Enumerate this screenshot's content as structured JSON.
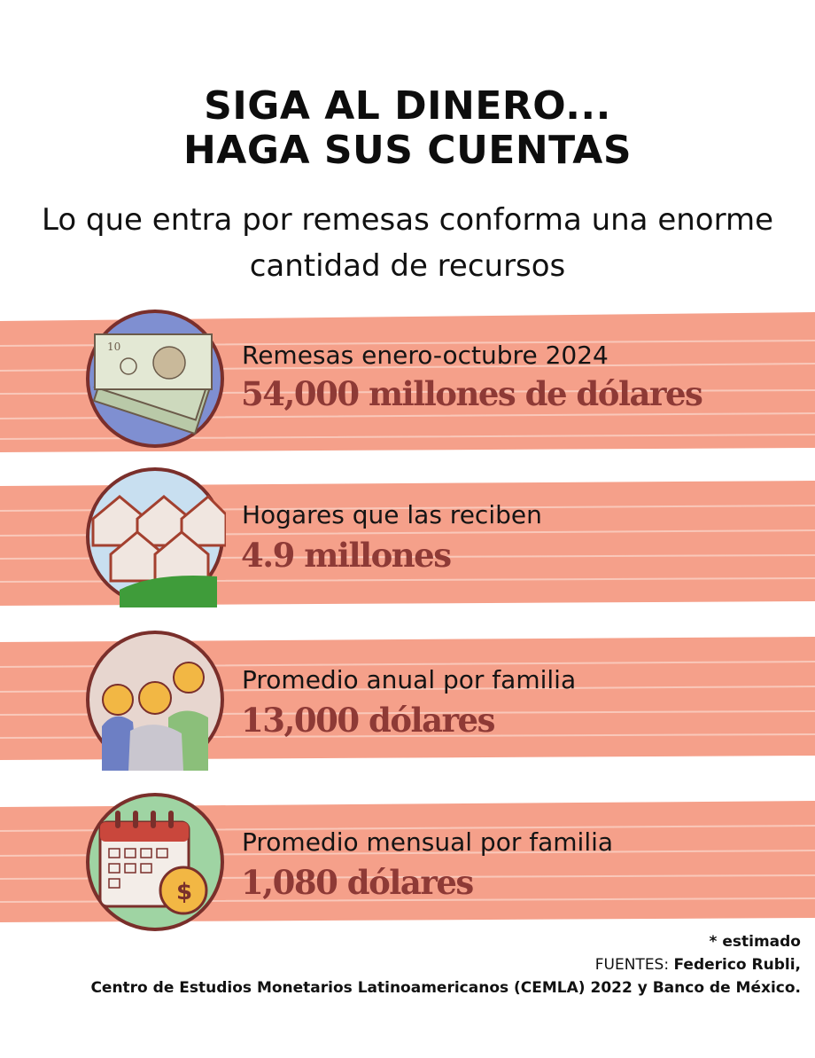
{
  "header": {
    "title_line1": "SIGA AL DINERO...",
    "title_line2": "HAGA SUS CUENTAS",
    "subtitle_line1": "Lo que entra por remesas conforma una enorme",
    "subtitle_line2": "cantidad de recursos"
  },
  "colors": {
    "band": "#f5a08a",
    "value_text": "#8e3a36",
    "icon_border": "#7a2f2b"
  },
  "items": [
    {
      "icon": "money-bills-icon",
      "label": "Remesas enero-octubre 2024",
      "value": "54,000 millones de dólares"
    },
    {
      "icon": "houses-icon",
      "label": "Hogares que las reciben",
      "value": "4.9 millones"
    },
    {
      "icon": "family-icon",
      "label": "Promedio anual por familia",
      "value": "13,000 dólares"
    },
    {
      "icon": "calendar-coin-icon",
      "label": "Promedio mensual por familia",
      "value": "1,080 dólares"
    }
  ],
  "footer": {
    "estimate_note": "* estimado",
    "sources_prefix": "FUENTES:",
    "sources_line1": "Federico Rubli,",
    "sources_line2": "Centro de Estudios Monetarios Latinoamericanos (CEMLA) 2022 y Banco de México."
  }
}
